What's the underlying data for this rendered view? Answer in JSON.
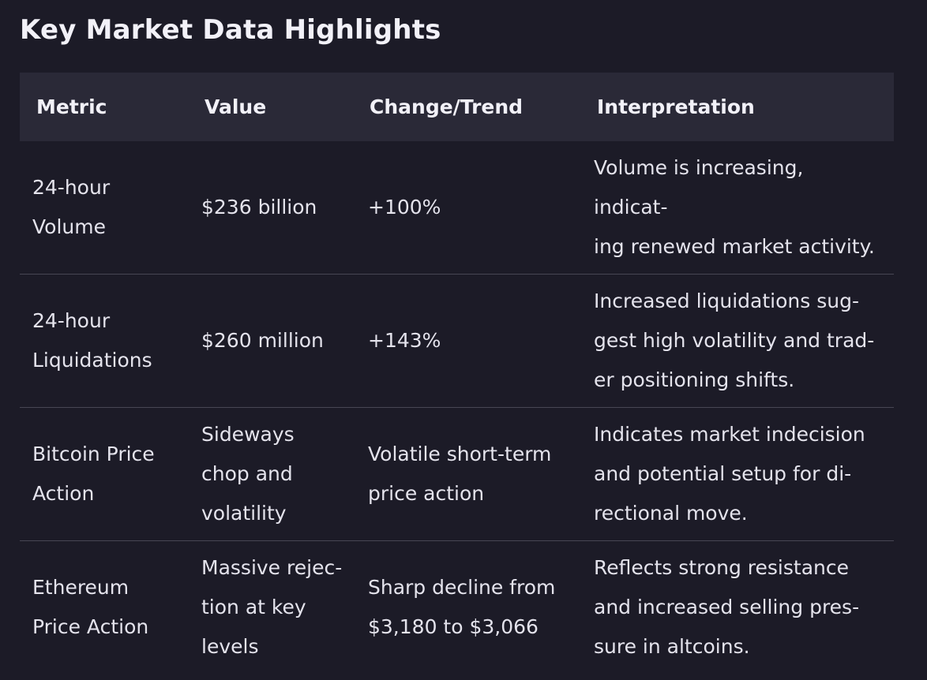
{
  "page": {
    "title": "Key Market Data Highlights"
  },
  "table": {
    "headers": [
      "Metric",
      "Value",
      "Change/Trend",
      "Interpretation"
    ],
    "rows": [
      {
        "metric": "24-hour\nVolume",
        "value": "$236 billion",
        "change": "+100%",
        "interpretation": "Volume is increasing, indicat-\ning renewed market activity."
      },
      {
        "metric": "24-hour\nLiquidations",
        "value": "$260 million",
        "change": "+143%",
        "interpretation": "Increased liquidations sug-\ngest high volatility and trad-\ner positioning shifts."
      },
      {
        "metric": "Bitcoin Price\nAction",
        "value": "Sideways\nchop and\nvolatility",
        "change": "Volatile short-term\nprice action",
        "interpretation": "Indicates market indecision\nand potential setup for di-\nrectional move."
      },
      {
        "metric": "Ethereum\nPrice Action",
        "value": "Massive rejec-\ntion at key\nlevels",
        "change": "Sharp decline from\n$3,180 to $3,066",
        "interpretation": "Reflects strong resistance\nand increased selling pres-\nsure in altcoins."
      }
    ]
  }
}
